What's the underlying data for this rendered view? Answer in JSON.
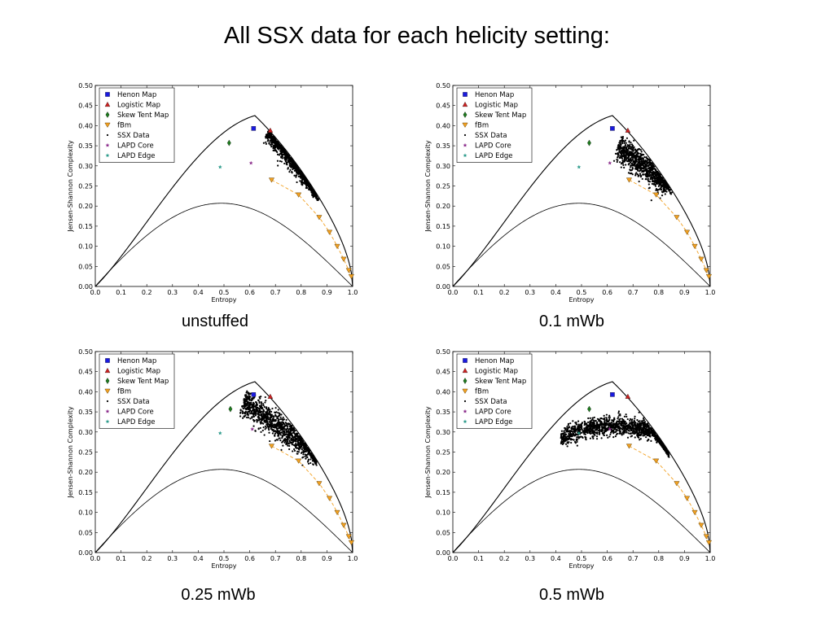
{
  "slide": {
    "title": "All SSX data for each helicity setting:"
  },
  "colors": {
    "henon": "#1a1adf",
    "logistic": "#cc2222",
    "skew_tent": "#1e7a1e",
    "fbm": "#f2a020",
    "ssx": "#000000",
    "lapd_core": "#8a2a8a",
    "lapd_edge": "#2a9a8a"
  },
  "legend": {
    "entries": [
      {
        "label": "Henon Map",
        "symbol": "square",
        "color": "#1a1adf"
      },
      {
        "label": "Logistic Map",
        "symbol": "triangle-up",
        "color": "#cc2222"
      },
      {
        "label": "Skew Tent Map",
        "symbol": "diamond",
        "color": "#1e7a1e"
      },
      {
        "label": "fBm",
        "symbol": "triangle-down",
        "color": "#f2a020"
      },
      {
        "label": "SSX Data",
        "symbol": "dot",
        "color": "#000000"
      },
      {
        "label": "LAPD Core",
        "symbol": "star",
        "color": "#8a2a8a"
      },
      {
        "label": "LAPD Edge",
        "symbol": "star",
        "color": "#2a9a8a"
      }
    ]
  },
  "chart_data": [
    {
      "type": "scatter",
      "caption": "unstuffed",
      "xlabel": "Entropy",
      "ylabel": "Jensen-Shannon Complexity",
      "xlim": [
        0.0,
        1.0
      ],
      "ylim": [
        0.0,
        0.5
      ],
      "x_ticks": [
        "0.0",
        "0.1",
        "0.2",
        "0.3",
        "0.4",
        "0.5",
        "0.6",
        "0.7",
        "0.8",
        "0.9",
        "1.0"
      ],
      "y_ticks": [
        "0.00",
        "0.05",
        "0.10",
        "0.15",
        "0.20",
        "0.25",
        "0.30",
        "0.35",
        "0.40",
        "0.45",
        "0.50"
      ],
      "legend_position": "top-left",
      "henon": [
        0.615,
        0.393
      ],
      "logistic": [
        0.68,
        0.388
      ],
      "skew_tent": [
        0.52,
        0.357
      ],
      "lapd_core": [
        0.605,
        0.307
      ],
      "lapd_edge": [
        0.485,
        0.297
      ],
      "fbm": {
        "x": [
          0.685,
          0.79,
          0.87,
          0.91,
          0.94,
          0.965,
          0.985,
          0.995
        ],
        "y": [
          0.265,
          0.228,
          0.172,
          0.135,
          0.1,
          0.068,
          0.04,
          0.025
        ]
      },
      "ssx_cluster": {
        "center": [
          0.765,
          0.312
        ],
        "direction": [
          1.0,
          -0.75
        ],
        "length": 0.24,
        "width": 0.022,
        "count": 900,
        "x_range": [
          0.64,
          0.87
        ]
      }
    },
    {
      "type": "scatter",
      "caption": "0.1 mWb",
      "xlabel": "Entropy",
      "ylabel": "Jensen-Shannon Complexity",
      "xlim": [
        0.0,
        1.0
      ],
      "ylim": [
        0.0,
        0.5
      ],
      "x_ticks": [
        "0.0",
        "0.1",
        "0.2",
        "0.3",
        "0.4",
        "0.5",
        "0.6",
        "0.7",
        "0.8",
        "0.9",
        "1.0"
      ],
      "y_ticks": [
        "0.00",
        "0.05",
        "0.10",
        "0.15",
        "0.20",
        "0.25",
        "0.30",
        "0.35",
        "0.40",
        "0.45",
        "0.50"
      ],
      "legend_position": "top-left",
      "henon": [
        0.62,
        0.393
      ],
      "logistic": [
        0.68,
        0.388
      ],
      "skew_tent": [
        0.53,
        0.357
      ],
      "lapd_core": [
        0.61,
        0.307
      ],
      "lapd_edge": [
        0.49,
        0.297
      ],
      "fbm": {
        "x": [
          0.685,
          0.79,
          0.87,
          0.91,
          0.94,
          0.965,
          0.985,
          0.995
        ],
        "y": [
          0.265,
          0.228,
          0.172,
          0.135,
          0.1,
          0.068,
          0.04,
          0.025
        ]
      },
      "ssx_cluster": {
        "center": [
          0.74,
          0.3
        ],
        "direction": [
          1.0,
          -0.5
        ],
        "length": 0.22,
        "width": 0.03,
        "count": 1000,
        "x_range": [
          0.62,
          0.86
        ]
      }
    },
    {
      "type": "scatter",
      "caption": "0.25 mWb",
      "xlabel": "Entropy",
      "ylabel": "Jensen-Shannon Complexity",
      "xlim": [
        0.0,
        1.0
      ],
      "ylim": [
        0.0,
        0.5
      ],
      "x_ticks": [
        "0.0",
        "0.1",
        "0.2",
        "0.3",
        "0.4",
        "0.5",
        "0.6",
        "0.7",
        "0.8",
        "0.9",
        "1.0"
      ],
      "y_ticks": [
        "0.00",
        "0.05",
        "0.10",
        "0.15",
        "0.20",
        "0.25",
        "0.30",
        "0.35",
        "0.40",
        "0.45",
        "0.50"
      ],
      "legend_position": "top-left",
      "henon": [
        0.615,
        0.393
      ],
      "logistic": [
        0.68,
        0.388
      ],
      "skew_tent": [
        0.525,
        0.357
      ],
      "lapd_core": [
        0.61,
        0.307
      ],
      "lapd_edge": [
        0.485,
        0.297
      ],
      "fbm": {
        "x": [
          0.685,
          0.79,
          0.87,
          0.91,
          0.94,
          0.965,
          0.985,
          0.995
        ],
        "y": [
          0.265,
          0.228,
          0.172,
          0.135,
          0.1,
          0.068,
          0.04,
          0.025
        ]
      },
      "ssx_cluster": {
        "center": [
          0.72,
          0.31
        ],
        "direction": [
          1.0,
          -0.45
        ],
        "length": 0.32,
        "width": 0.032,
        "count": 1200,
        "x_range": [
          0.5,
          0.86
        ]
      }
    },
    {
      "type": "scatter",
      "caption": "0.5 mWb",
      "xlabel": "Entropy",
      "ylabel": "Jensen-Shannon Complexity",
      "xlim": [
        0.0,
        1.0
      ],
      "ylim": [
        0.0,
        0.5
      ],
      "x_ticks": [
        "0.0",
        "0.1",
        "0.2",
        "0.3",
        "0.4",
        "0.5",
        "0.6",
        "0.7",
        "0.8",
        "0.9",
        "1.0"
      ],
      "y_ticks": [
        "0.00",
        "0.05",
        "0.10",
        "0.15",
        "0.20",
        "0.25",
        "0.30",
        "0.35",
        "0.40",
        "0.45",
        "0.50"
      ],
      "legend_position": "top-left",
      "henon": [
        0.62,
        0.393
      ],
      "logistic": [
        0.68,
        0.388
      ],
      "skew_tent": [
        0.53,
        0.357
      ],
      "lapd_core": [
        0.61,
        0.307
      ],
      "lapd_edge": [
        0.49,
        0.297
      ],
      "fbm": {
        "x": [
          0.685,
          0.79,
          0.87,
          0.91,
          0.94,
          0.965,
          0.985,
          0.995
        ],
        "y": [
          0.265,
          0.228,
          0.172,
          0.135,
          0.1,
          0.068,
          0.04,
          0.025
        ]
      },
      "ssx_cluster": {
        "center": [
          0.63,
          0.305
        ],
        "direction": [
          1.0,
          0.0
        ],
        "length": 0.42,
        "width": 0.02,
        "count": 1300,
        "x_range": [
          0.38,
          0.85
        ],
        "arched": true
      }
    }
  ]
}
